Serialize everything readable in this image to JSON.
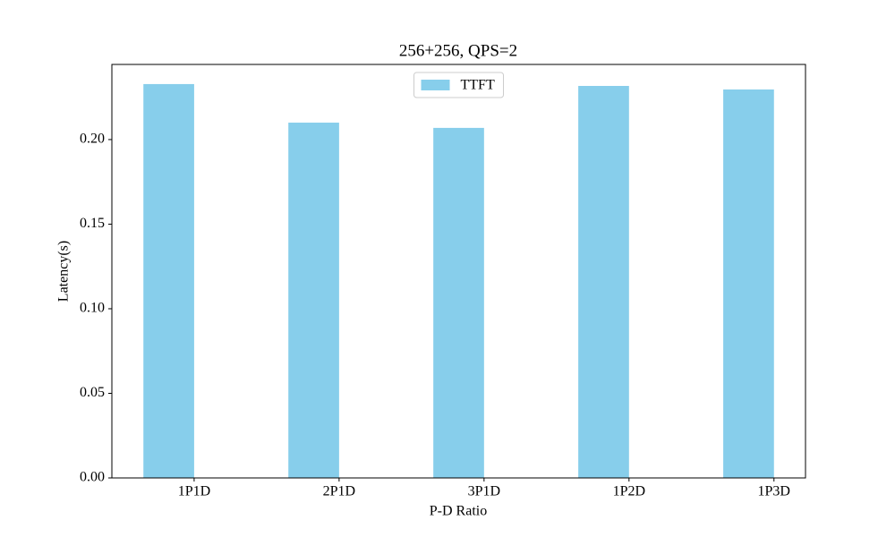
{
  "chart_data": {
    "type": "bar",
    "title": "256+256, QPS=2",
    "x_label": "P-D Ratio",
    "y_label": "Latency(s)",
    "categories": [
      "1P1D",
      "2P1D",
      "3P1D",
      "1P2D",
      "1P3D"
    ],
    "series": [
      {
        "name": "TTFT",
        "color": "#87ceeb",
        "values": [
          0.2328,
          0.21,
          0.2069,
          0.2317,
          0.2296
        ]
      }
    ],
    "ylim": [
      0,
      0.2444
    ],
    "yticks": [
      {
        "value": 0,
        "label": "0.00"
      },
      {
        "value": 0.05,
        "label": "0.05"
      },
      {
        "value": 0.1,
        "label": "0.10"
      },
      {
        "value": 0.15,
        "label": "0.15"
      },
      {
        "value": 0.2,
        "label": "0.20"
      }
    ],
    "grid": false,
    "legend": "upper center"
  }
}
